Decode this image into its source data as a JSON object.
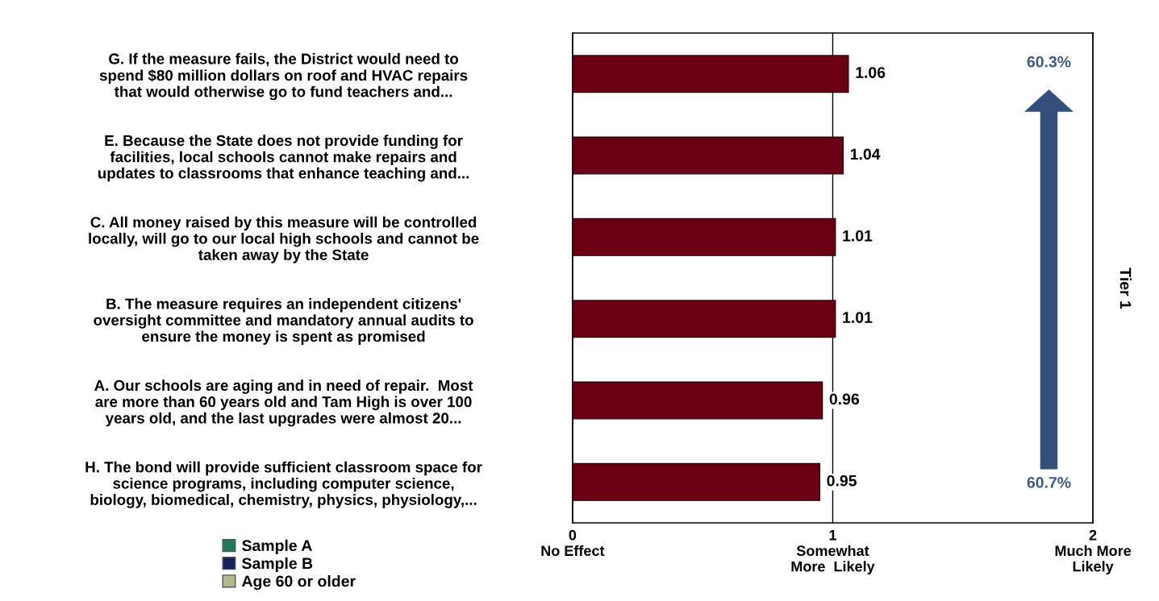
{
  "chart_data": {
    "type": "bar",
    "orientation": "horizontal",
    "categories": [
      "G. If the measure fails, the District would need to\nspend $80 million dollars on roof and HVAC repairs\nthat would otherwise go to fund teachers and...",
      "E. Because the State does not provide funding for\nfacilities, local schools cannot make repairs and\nupdates to classrooms that enhance teaching and...",
      "C. All money raised by this measure will be controlled\nlocally, will go to our local high schools and cannot be\ntaken away by the State",
      "B. The measure requires an independent citizens'\noversight committee and mandatory annual audits to\nensure the money is spent as promised",
      "A. Our schools are aging and in need of repair.  Most\nare more than 60 years old and Tam High is over 100\nyears old, and the last upgrades were almost 20...",
      "H. The bond will provide sufficient classroom space for\nscience programs, including computer science,\nbiology, biomedical, chemistry, physics, physiology,..."
    ],
    "series": [
      {
        "color": "#6b0015",
        "values": [
          1.06,
          1.04,
          1.01,
          1.01,
          0.96,
          0.95
        ]
      },
      {
        "name": "Sample A",
        "color": "#1f7a5a",
        "values": [
          null,
          null,
          null,
          null,
          null,
          null
        ]
      },
      {
        "name": "Sample B",
        "color": "#14205e",
        "values": [
          null,
          null,
          null,
          null,
          null,
          null
        ]
      },
      {
        "name": "Age 60 or older",
        "color": "#b5b88a",
        "values": [
          null,
          null,
          null,
          null,
          null,
          null
        ]
      }
    ],
    "xlim": [
      0,
      2
    ],
    "xticks": [
      {
        "value": 0,
        "label": "0\nNo Effect"
      },
      {
        "value": 1,
        "label": "1\nSomewhat\nMore  Likely"
      },
      {
        "value": 2,
        "label": "2\nMuch More\nLikely"
      }
    ],
    "grid": "x",
    "data_labels": true,
    "legend": "bottom left",
    "annotations": [
      "60.3%",
      "60.7%",
      "Tier 1"
    ]
  }
}
